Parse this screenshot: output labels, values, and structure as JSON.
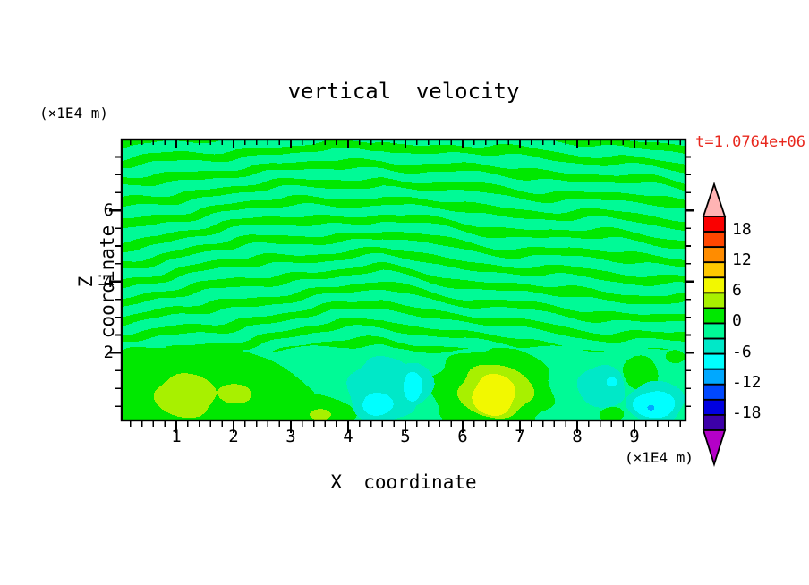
{
  "chart_data": {
    "type": "heatmap",
    "subtype": "filled-contour",
    "title": "vertical velocity",
    "time_annotation": "t=1.0764e+06",
    "x_axis": {
      "label": "X coordinate",
      "unit_label": "(×1E4 m)",
      "range": [
        0.0,
        9.9
      ],
      "major_tick_values": [
        1,
        2,
        3,
        4,
        5,
        6,
        7,
        8,
        9
      ],
      "major_tick_labels": [
        "1",
        "2",
        "3",
        "4",
        "5",
        "6",
        "7",
        "8",
        "9"
      ],
      "minor_tick_step": 0.2
    },
    "z_axis": {
      "label": "Z coordinate",
      "unit_label": "(×1E4 m)",
      "range": [
        0.0,
        8.0
      ],
      "major_tick_values": [
        2,
        4,
        6
      ],
      "major_tick_labels": [
        "2",
        "4",
        "6"
      ],
      "minor_tick_step": 0.5
    },
    "value_range": [
      -21,
      21
    ],
    "contour_interval": 3,
    "level_colors": {
      "<-21": "#B400C8",
      "-21..-18": "#3C00A8",
      "-18..-15": "#0000E0",
      "-15..-12": "#0048FF",
      "-12..-9": "#00A8FF",
      "-9..-6": "#00FFFF",
      "-6..-3": "#00E8C8",
      "-3..0": "#00FA96",
      "0..3": "#00E800",
      "3..6": "#A8F000",
      "6..9": "#F2F800",
      "9..12": "#FFC800",
      "12..15": "#FF8C00",
      "15..18": "#FF4600",
      "18..21": "#FA0000",
      ">21": "#FFB4B4"
    },
    "colorbar": {
      "cell_bands_top_to_bottom": [
        "18..21",
        "15..18",
        "12..15",
        "9..12",
        "6..9",
        "3..6",
        "0..3",
        "-3..0",
        "-6..-3",
        "-9..-6",
        "-12..-9",
        "-15..-12",
        "-18..-15",
        "-21..-18"
      ],
      "top_arrow_band": ">21",
      "bottom_arrow_band": "<-21",
      "labels": [
        {
          "text": "18",
          "boundary_index": 1
        },
        {
          "text": "12",
          "boundary_index": 3
        },
        {
          "text": "6",
          "boundary_index": 5
        },
        {
          "text": "0",
          "boundary_index": 7
        },
        {
          "text": "-6",
          "boundary_index": 9
        },
        {
          "text": "-12",
          "boundary_index": 11
        },
        {
          "text": "-18",
          "boundary_index": 13
        }
      ]
    },
    "field_summary": "Wavy alternating stripes of 0..3 and -3..0 bands (internal-wave pattern) above z≈2.1; smoother field below with positive maxima (chartreuse/yellow) near x≈1-2 and x≈6.5, and negative patches (turquoise/cyan) near x≈4.5-5.2 and x≈8.4-9.7",
    "wave_pattern": {
      "boundary_z": 2.12,
      "boundary_wiggle1": {
        "a": 0.07,
        "f": 1.9,
        "p": 0.6
      },
      "boundary_wiggle2": {
        "a": 0.05,
        "f": 4.3
      },
      "kz": 12.0,
      "chevron": 2.0,
      "chevron_x0": 4.6,
      "wiggles": [
        {
          "a": 1.35,
          "kx": 0.85,
          "kz": 0.5
        },
        {
          "a": 0.85,
          "kx": 2.05,
          "kz": -1.15
        },
        {
          "a": 0.5,
          "kx": 3.9,
          "kz": 2.7
        },
        {
          "a": 0.3,
          "kx": 6.7,
          "kz": 5.3
        }
      ],
      "threshold": 0.2,
      "blob_edge_wiggle": 0.13,
      "blob_edge_f1": 4.7,
      "blob_edge_f2": 6.3
    },
    "features": [
      {
        "band": "0..3",
        "x": 1.3,
        "z": 0.8,
        "rx": 2.05,
        "ry": 1.5
      },
      {
        "band": "0..3",
        "x": 0.4,
        "z": 0.5,
        "rx": 1.3,
        "ry": 1.1
      },
      {
        "band": "0..3",
        "x": 2.9,
        "z": 0.35,
        "rx": 1.2,
        "ry": 0.55
      },
      {
        "band": "0..3",
        "x": 6.5,
        "z": 0.95,
        "rx": 1.08,
        "ry": 1.18
      },
      {
        "band": "0..3",
        "x": 9.1,
        "z": 1.45,
        "rx": 0.3,
        "ry": 0.52
      },
      {
        "band": "0..3",
        "x": 8.6,
        "z": 0.28,
        "rx": 0.22,
        "ry": 0.22
      },
      {
        "band": "0..3",
        "x": 9.7,
        "z": 1.9,
        "rx": 0.16,
        "ry": 0.18
      },
      {
        "band": "-6..-3",
        "x": 4.6,
        "z": 0.95,
        "rx": 0.62,
        "ry": 0.92
      },
      {
        "band": "-6..-3",
        "x": 5.15,
        "z": 1.15,
        "rx": 0.33,
        "ry": 0.6
      },
      {
        "band": "-6..-3",
        "x": 8.42,
        "z": 1.05,
        "rx": 0.42,
        "ry": 0.62
      },
      {
        "band": "-6..-3",
        "x": 9.36,
        "z": 0.62,
        "rx": 0.5,
        "ry": 0.57
      },
      {
        "band": "-9..-6",
        "x": 4.5,
        "z": 0.55,
        "rx": 0.27,
        "ry": 0.32
      },
      {
        "band": "-9..-6",
        "x": 5.12,
        "z": 1.05,
        "rx": 0.17,
        "ry": 0.4
      },
      {
        "band": "-9..-6",
        "x": 8.6,
        "z": 1.2,
        "rx": 0.1,
        "ry": 0.13
      },
      {
        "band": "-9..-6",
        "x": 9.35,
        "z": 0.57,
        "rx": 0.37,
        "ry": 0.37
      },
      {
        "band": "-12..-9",
        "x": 9.28,
        "z": 0.47,
        "rx": 0.06,
        "ry": 0.07
      },
      {
        "band": "3..6",
        "x": 1.15,
        "z": 0.8,
        "rx": 0.52,
        "ry": 0.6
      },
      {
        "band": "3..6",
        "x": 2.02,
        "z": 0.87,
        "rx": 0.29,
        "ry": 0.28
      },
      {
        "band": "3..6",
        "x": 3.5,
        "z": 0.27,
        "rx": 0.19,
        "ry": 0.16
      },
      {
        "band": "3..6",
        "x": 6.57,
        "z": 0.95,
        "rx": 0.64,
        "ry": 0.75
      },
      {
        "band": "6..9",
        "x": 6.54,
        "z": 0.83,
        "rx": 0.37,
        "ry": 0.56
      }
    ]
  }
}
